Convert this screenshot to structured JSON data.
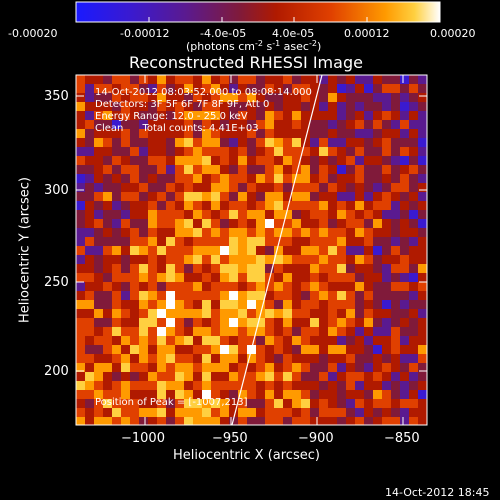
{
  "colorbar": {
    "ticks": [
      "-0.00020",
      "-0.00012",
      "-4.0e-05",
      "4.0e-05",
      "0.00012",
      "0.00020"
    ],
    "unit_parts": [
      "(photons cm",
      "-2",
      " s",
      "-1",
      " asec",
      "-2",
      ")"
    ],
    "colors": [
      "#1a1aff",
      "#3a1ad0",
      "#5a1a90",
      "#801a3a",
      "#b01a00",
      "#e04000",
      "#ff9a00",
      "#ffd040",
      "#ffffff"
    ]
  },
  "plot": {
    "title": "Reconstructed RHESSI Image",
    "xlabel": "Heliocentric X (arcsec)",
    "ylabel": "Heliocentric Y (arcsec)",
    "xticks": [
      "−1000",
      "−950",
      "−900",
      "−850"
    ],
    "yticks": [
      "350",
      "300",
      "250",
      "200"
    ],
    "info_lines": [
      "14-Oct-2012 08:03:52.000 to 08:08:14.000",
      "Detectors: 3F 5F 6F 7F 8F 9F, Att 0",
      "Energy Range: 12.0 - 25.0 keV",
      "Clean      Total counts: 4.41E+03"
    ],
    "peak_text": "Position of Peak = [-1007,213]",
    "limb_color": "#ffffff"
  },
  "footer": {
    "timestamp": "14-Oct-2012 18:45"
  }
}
